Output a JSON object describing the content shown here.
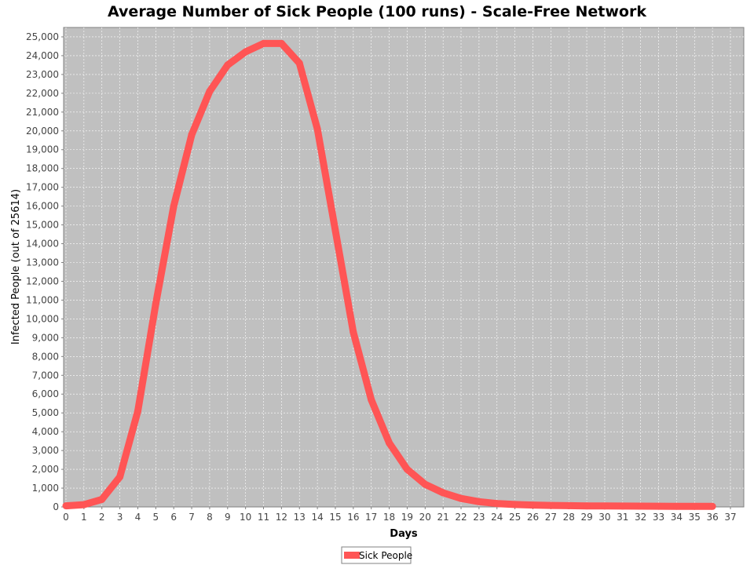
{
  "chart_data": {
    "type": "line",
    "title": "Average Number of Sick People (100 runs) - Scale-Free Network",
    "xlabel": "Days",
    "ylabel": "Infected People (out of 25614)",
    "xlim": [
      0,
      37
    ],
    "ylim": [
      0,
      25500
    ],
    "x_ticks": [
      0,
      1,
      2,
      3,
      4,
      5,
      6,
      7,
      8,
      9,
      10,
      11,
      12,
      13,
      14,
      15,
      16,
      17,
      18,
      19,
      20,
      21,
      22,
      23,
      24,
      25,
      26,
      27,
      28,
      29,
      30,
      31,
      32,
      33,
      34,
      35,
      36,
      37
    ],
    "y_ticks": [
      0,
      1000,
      2000,
      3000,
      4000,
      5000,
      6000,
      7000,
      8000,
      9000,
      10000,
      11000,
      12000,
      13000,
      14000,
      15000,
      16000,
      17000,
      18000,
      19000,
      20000,
      21000,
      22000,
      23000,
      24000,
      25000
    ],
    "y_tick_labels": [
      "0",
      "1,000",
      "2,000",
      "3,000",
      "4,000",
      "5,000",
      "6,000",
      "7,000",
      "8,000",
      "9,000",
      "10,000",
      "11,000",
      "12,000",
      "13,000",
      "14,000",
      "15,000",
      "16,000",
      "17,000",
      "18,000",
      "19,000",
      "20,000",
      "21,000",
      "22,000",
      "23,000",
      "24,000",
      "25,000"
    ],
    "grid": true,
    "legend_position": "bottom-center",
    "plot_background": "#c0c0c0",
    "grid_color": "#ffffff",
    "series": [
      {
        "name": "Sick People",
        "color": "#ff5555",
        "x": [
          0,
          1,
          2,
          3,
          4,
          5,
          6,
          7,
          8,
          9,
          10,
          11,
          12,
          13,
          14,
          15,
          16,
          17,
          18,
          19,
          20,
          21,
          22,
          23,
          24,
          25,
          26,
          27,
          28,
          29,
          30,
          31,
          32,
          33,
          34,
          35,
          36
        ],
        "values": [
          60,
          120,
          400,
          1600,
          5100,
          10800,
          16000,
          19800,
          22100,
          23500,
          24200,
          24650,
          24650,
          23600,
          20100,
          14700,
          9300,
          5700,
          3400,
          2000,
          1200,
          750,
          450,
          280,
          180,
          130,
          100,
          80,
          65,
          55,
          50,
          45,
          40,
          38,
          35,
          32,
          30
        ]
      }
    ]
  }
}
